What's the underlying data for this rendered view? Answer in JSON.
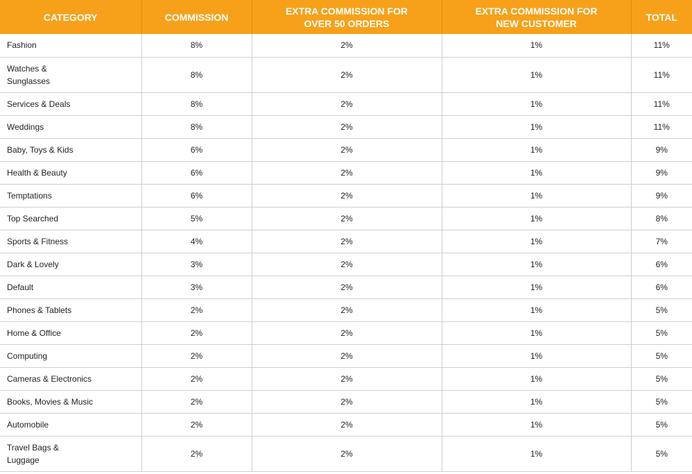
{
  "header": {
    "category": "CATEGORY",
    "commission": "COMMISSION",
    "extra_orders_line1": "EXTRA COMMISSION FOR",
    "extra_orders_line2": "OVER 50 ORDERS",
    "extra_new_line1": "EXTRA COMMISSION FOR",
    "extra_new_line2": "NEW CUSTOMER",
    "total": "TOTAL"
  },
  "colors": {
    "header_bg": "#f7a11a",
    "header_text": "#ffffff",
    "grid": "#cfcfcf"
  },
  "rows": [
    {
      "category": "Fashion",
      "commission": "8%",
      "extra_orders": "2%",
      "extra_new": "1%",
      "total": "11%"
    },
    {
      "category_line1": "Watches &",
      "category_line2": "Sunglasses",
      "commission": "8%",
      "extra_orders": "2%",
      "extra_new": "1%",
      "total": "11%"
    },
    {
      "category": "Services & Deals",
      "commission": "8%",
      "extra_orders": "2%",
      "extra_new": "1%",
      "total": "11%"
    },
    {
      "category": "Weddings",
      "commission": "8%",
      "extra_orders": "2%",
      "extra_new": "1%",
      "total": "11%"
    },
    {
      "category": "Baby, Toys & Kids",
      "commission": "6%",
      "extra_orders": "2%",
      "extra_new": "1%",
      "total": "9%"
    },
    {
      "category": "Health & Beauty",
      "commission": "6%",
      "extra_orders": "2%",
      "extra_new": "1%",
      "total": "9%"
    },
    {
      "category": "Temptations",
      "commission": "6%",
      "extra_orders": "2%",
      "extra_new": "1%",
      "total": "9%"
    },
    {
      "category": "Top Searched",
      "commission": "5%",
      "extra_orders": "2%",
      "extra_new": "1%",
      "total": "8%"
    },
    {
      "category": "Sports & Fitness",
      "commission": "4%",
      "extra_orders": "2%",
      "extra_new": "1%",
      "total": "7%"
    },
    {
      "category": "Dark & Lovely",
      "commission": "3%",
      "extra_orders": "2%",
      "extra_new": "1%",
      "total": "6%"
    },
    {
      "category": "Default",
      "commission": "3%",
      "extra_orders": "2%",
      "extra_new": "1%",
      "total": "6%"
    },
    {
      "category": "Phones & Tablets",
      "commission": "2%",
      "extra_orders": "2%",
      "extra_new": "1%",
      "total": "5%"
    },
    {
      "category": "Home & Office",
      "commission": "2%",
      "extra_orders": "2%",
      "extra_new": "1%",
      "total": "5%"
    },
    {
      "category": "Computing",
      "commission": "2%",
      "extra_orders": "2%",
      "extra_new": "1%",
      "total": "5%"
    },
    {
      "category": "Cameras & Electronics",
      "commission": "2%",
      "extra_orders": "2%",
      "extra_new": "1%",
      "total": "5%"
    },
    {
      "category": "Books, Movies & Music",
      "commission": "2%",
      "extra_orders": "2%",
      "extra_new": "1%",
      "total": "5%"
    },
    {
      "category": "Automobile",
      "commission": "2%",
      "extra_orders": "2%",
      "extra_new": "1%",
      "total": "5%"
    },
    {
      "category_line1": "Travel Bags &",
      "category_line2": "Luggage",
      "commission": "2%",
      "extra_orders": "2%",
      "extra_new": "1%",
      "total": "5%"
    }
  ]
}
